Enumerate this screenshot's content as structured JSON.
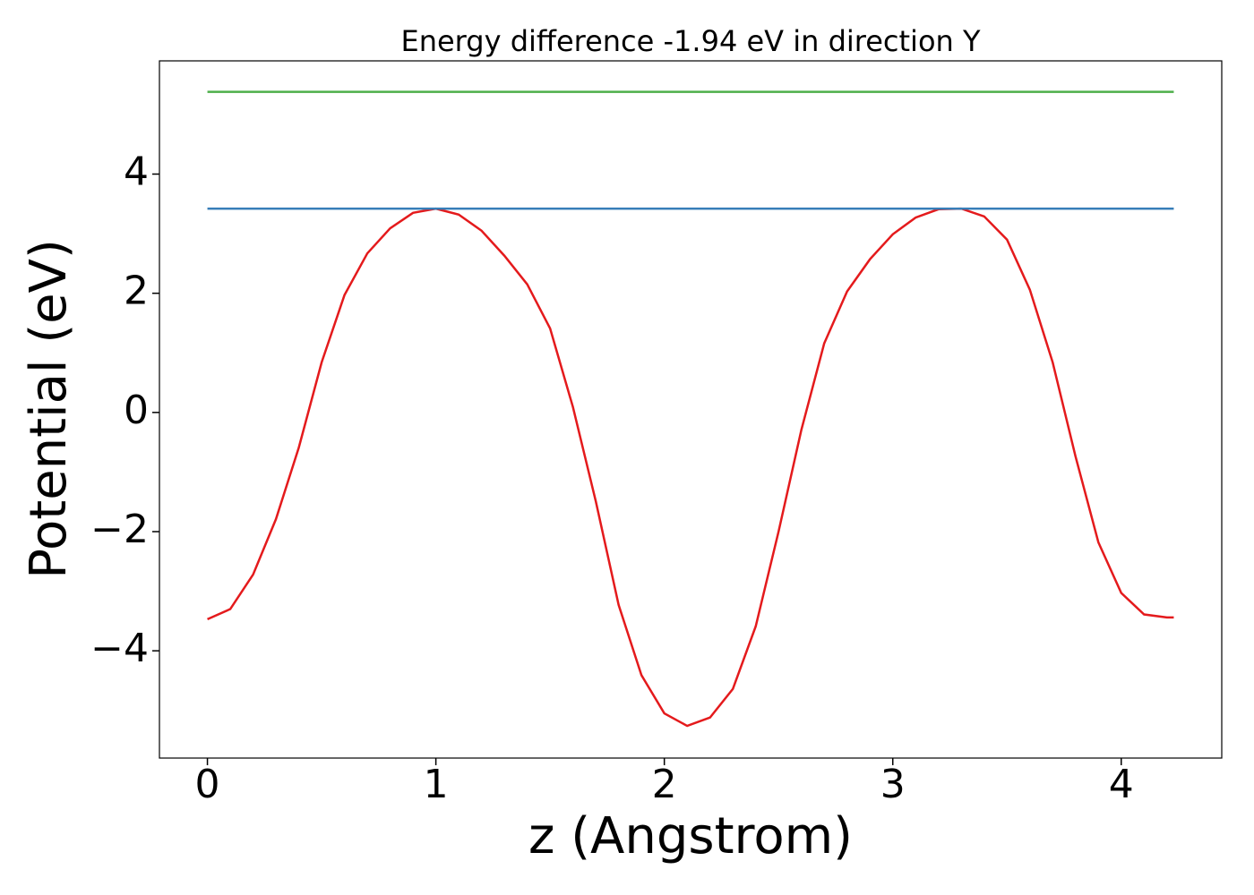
{
  "chart_data": {
    "type": "line",
    "title": "Energy difference -1.94 eV in direction Y",
    "xlabel": "z (Angstrom)",
    "ylabel": "Potential (eV)",
    "xlim": [
      -0.21,
      4.44
    ],
    "ylim": [
      -5.8,
      5.9
    ],
    "xticks": [
      0,
      1,
      2,
      3,
      4
    ],
    "yticks": [
      {
        "value": -4,
        "label": "−4"
      },
      {
        "value": -2,
        "label": "−2"
      },
      0,
      2,
      4
    ],
    "series": [
      {
        "color": "#e41a1c",
        "x": [
          0,
          0.1,
          0.2,
          0.3,
          0.4,
          0.5,
          0.6,
          0.7,
          0.8,
          0.9,
          1.0,
          1.1,
          1.2,
          1.3,
          1.4,
          1.5,
          1.6,
          1.7,
          1.8,
          1.9,
          2.0,
          2.1,
          2.2,
          2.3,
          2.4,
          2.5,
          2.6,
          2.7,
          2.8,
          2.9,
          3.0,
          3.1,
          3.2,
          3.3,
          3.4,
          3.5,
          3.6,
          3.7,
          3.8,
          3.9,
          4.0,
          4.1,
          4.2,
          4.23
        ],
        "values": [
          -3.47,
          -3.3,
          -2.72,
          -1.79,
          -0.59,
          0.84,
          1.97,
          2.67,
          3.09,
          3.35,
          3.42,
          3.32,
          3.05,
          2.63,
          2.15,
          1.41,
          0.09,
          -1.49,
          -3.23,
          -4.41,
          -5.05,
          -5.26,
          -5.12,
          -4.64,
          -3.59,
          -2.0,
          -0.29,
          1.16,
          2.03,
          2.57,
          2.99,
          3.27,
          3.41,
          3.42,
          3.29,
          2.9,
          2.06,
          0.84,
          -0.74,
          -2.18,
          -3.03,
          -3.39,
          -3.44,
          -3.44
        ]
      },
      {
        "color": "#377eb8",
        "x": [
          0,
          4.23
        ],
        "values": [
          3.42,
          3.42
        ]
      },
      {
        "color": "#4daf4a",
        "x": [
          0,
          4.23
        ],
        "values": [
          5.38,
          5.38
        ]
      }
    ]
  }
}
